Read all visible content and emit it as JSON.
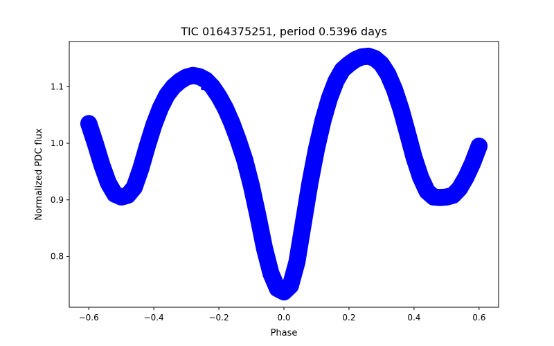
{
  "chart_data": {
    "type": "scatter",
    "title": "TIC 0164375251, period 0.5396 days",
    "xlabel": "Phase",
    "ylabel": "Normalized PDC flux",
    "xlim": [
      -0.66,
      0.66
    ],
    "ylim": [
      0.71,
      1.18
    ],
    "xticks": [
      -0.6,
      -0.4,
      -0.2,
      0.0,
      0.2,
      0.4,
      0.6
    ],
    "xtick_labels": [
      "−0.6",
      "−0.4",
      "−0.2",
      "0.0",
      "0.2",
      "0.4",
      "0.6"
    ],
    "yticks": [
      0.8,
      0.9,
      1.0,
      1.1
    ],
    "ytick_labels": [
      "0.8",
      "0.9",
      "1.0",
      "1.1"
    ],
    "grid": false,
    "series": [
      {
        "name": "PDC flux",
        "color": "#0000ff",
        "scatter_band": 0.012,
        "x": [
          -0.6,
          -0.58,
          -0.56,
          -0.54,
          -0.52,
          -0.5,
          -0.48,
          -0.46,
          -0.44,
          -0.42,
          -0.4,
          -0.38,
          -0.36,
          -0.34,
          -0.32,
          -0.3,
          -0.28,
          -0.26,
          -0.24,
          -0.22,
          -0.2,
          -0.18,
          -0.16,
          -0.14,
          -0.12,
          -0.1,
          -0.08,
          -0.06,
          -0.04,
          -0.02,
          0.0,
          0.02,
          0.04,
          0.06,
          0.08,
          0.1,
          0.12,
          0.14,
          0.16,
          0.18,
          0.2,
          0.22,
          0.24,
          0.26,
          0.28,
          0.3,
          0.32,
          0.34,
          0.36,
          0.38,
          0.4,
          0.42,
          0.44,
          0.46,
          0.48,
          0.5,
          0.52,
          0.54,
          0.56,
          0.58,
          0.6
        ],
        "y": [
          1.035,
          1.0,
          0.962,
          0.93,
          0.91,
          0.905,
          0.908,
          0.922,
          0.955,
          0.995,
          1.032,
          1.062,
          1.085,
          1.1,
          1.11,
          1.117,
          1.12,
          1.118,
          1.112,
          1.1,
          1.083,
          1.062,
          1.036,
          1.005,
          0.97,
          0.925,
          0.872,
          0.815,
          0.77,
          0.743,
          0.737,
          0.748,
          0.79,
          0.86,
          0.93,
          0.99,
          1.04,
          1.08,
          1.11,
          1.13,
          1.14,
          1.148,
          1.153,
          1.154,
          1.15,
          1.14,
          1.122,
          1.095,
          1.06,
          1.018,
          0.975,
          0.94,
          0.915,
          0.905,
          0.904,
          0.905,
          0.908,
          0.92,
          0.94,
          0.965,
          0.995
        ]
      }
    ],
    "outliers": [
      {
        "x": -0.25,
        "y": 1.097
      }
    ]
  }
}
